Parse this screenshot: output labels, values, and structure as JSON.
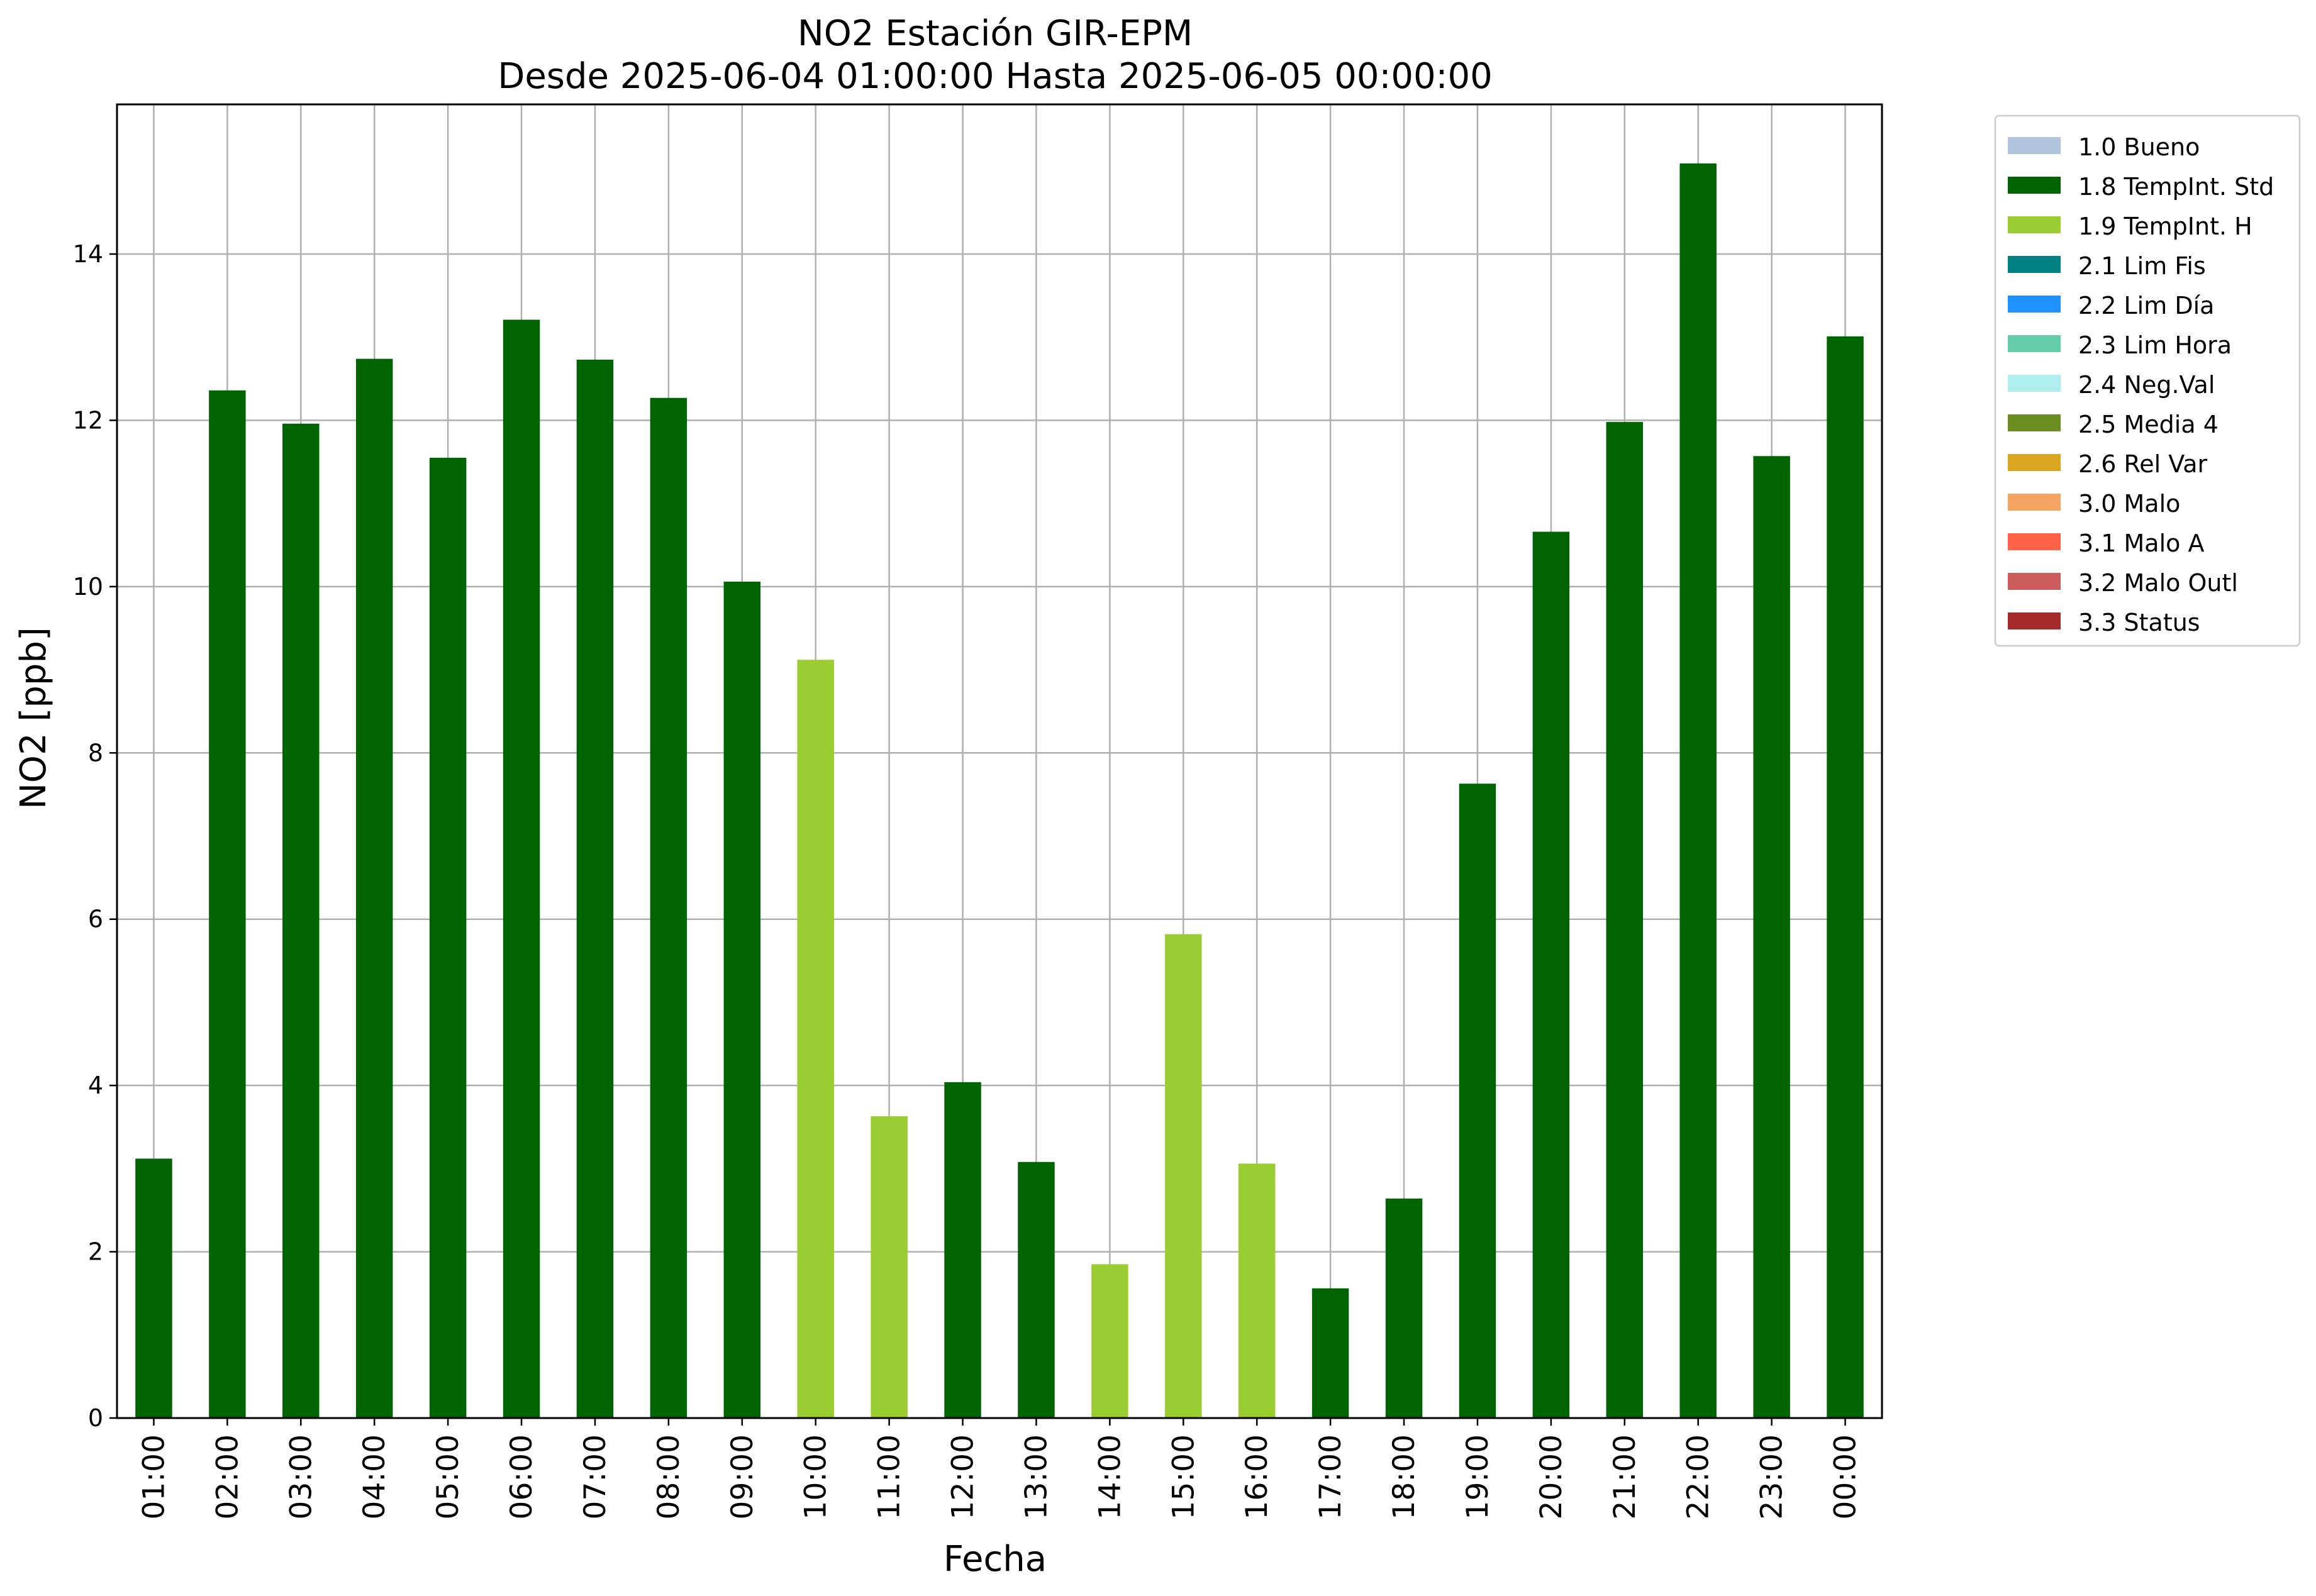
{
  "chart_data": {
    "type": "bar",
    "title": "NO2 Estación GIR-EPM",
    "subtitle": "Desde 2025-06-04 01:00:00 Hasta 2025-06-05 00:00:00",
    "xlabel": "Fecha",
    "ylabel": "NO2 [ppb]",
    "ylim": [
      0,
      15.8
    ],
    "yticks": [
      0,
      2,
      4,
      6,
      8,
      10,
      12,
      14
    ],
    "grid": true,
    "legend_position": "outside-top-right",
    "categories": [
      "01:00",
      "02:00",
      "03:00",
      "04:00",
      "05:00",
      "06:00",
      "07:00",
      "08:00",
      "09:00",
      "10:00",
      "11:00",
      "12:00",
      "13:00",
      "14:00",
      "15:00",
      "16:00",
      "17:00",
      "18:00",
      "19:00",
      "20:00",
      "21:00",
      "22:00",
      "23:00",
      "00:00"
    ],
    "values": [
      3.12,
      12.36,
      11.96,
      12.74,
      11.55,
      13.21,
      12.73,
      12.27,
      10.06,
      9.12,
      3.63,
      4.04,
      3.08,
      1.85,
      5.82,
      3.06,
      1.56,
      2.64,
      7.63,
      10.66,
      11.98,
      15.09,
      11.57,
      13.01
    ],
    "flags": [
      "1.8 TempInt. Std",
      "1.8 TempInt. Std",
      "1.8 TempInt. Std",
      "1.8 TempInt. Std",
      "1.8 TempInt. Std",
      "1.8 TempInt. Std",
      "1.8 TempInt. Std",
      "1.8 TempInt. Std",
      "1.8 TempInt. Std",
      "1.9 TempInt. H",
      "1.9 TempInt. H",
      "1.8 TempInt. Std",
      "1.8 TempInt. Std",
      "1.9 TempInt. H",
      "1.9 TempInt. H",
      "1.9 TempInt. H",
      "1.8 TempInt. Std",
      "1.8 TempInt. Std",
      "1.8 TempInt. Std",
      "1.8 TempInt. Std",
      "1.8 TempInt. Std",
      "1.8 TempInt. Std",
      "1.8 TempInt. Std",
      "1.8 TempInt. Std"
    ],
    "legend": [
      {
        "label": "1.0 Bueno",
        "color": "#b0c4de"
      },
      {
        "label": "1.8 TempInt. Std",
        "color": "#006400"
      },
      {
        "label": "1.9 TempInt. H",
        "color": "#9acd32"
      },
      {
        "label": "2.1 Lim Fis",
        "color": "#008080"
      },
      {
        "label": "2.2 Lim Día",
        "color": "#1e90ff"
      },
      {
        "label": "2.3 Lim Hora",
        "color": "#66cdaa"
      },
      {
        "label": "2.4 Neg.Val",
        "color": "#afeeee"
      },
      {
        "label": "2.5 Media 4",
        "color": "#6b8e23"
      },
      {
        "label": "2.6 Rel Var",
        "color": "#daa520"
      },
      {
        "label": "3.0 Malo",
        "color": "#f4a460"
      },
      {
        "label": "3.1 Malo A",
        "color": "#ff6347"
      },
      {
        "label": "3.2 Malo Outl",
        "color": "#cd5c5c"
      },
      {
        "label": "3.3 Status",
        "color": "#a52a2a"
      }
    ]
  }
}
